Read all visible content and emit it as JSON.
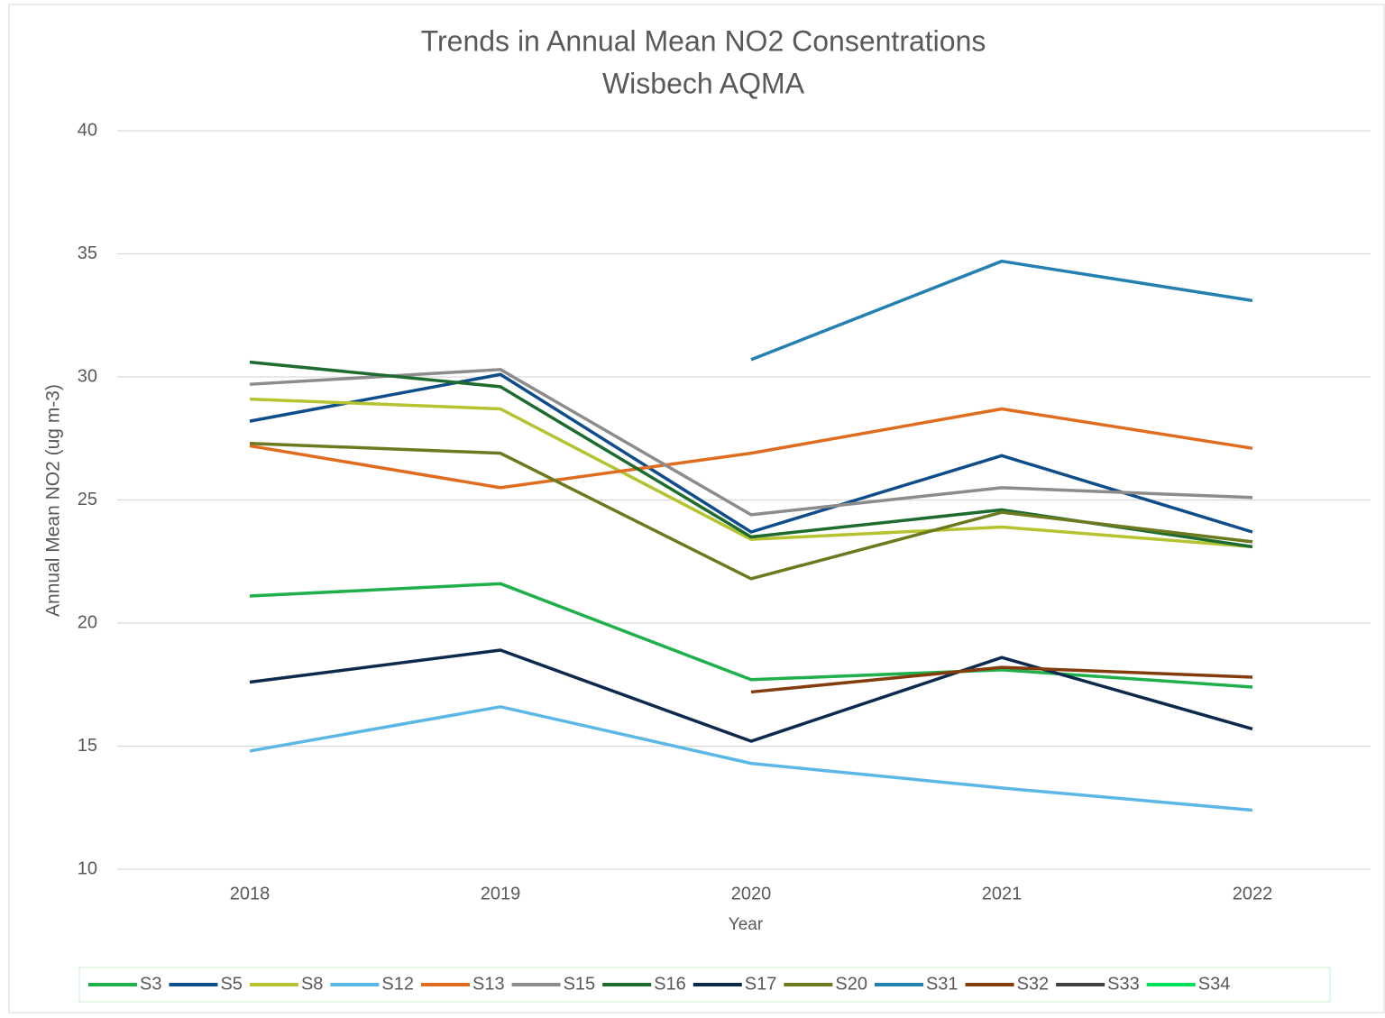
{
  "chart_data": {
    "type": "line",
    "title": "Trends in Annual Mean NO2 Consentrations",
    "subtitle": "Wisbech AQMA",
    "x_label": "Year",
    "y_label": "Annual Mean NO2 (ug m-3)",
    "categories": [
      "2018",
      "2019",
      "2020",
      "2021",
      "2022"
    ],
    "ylim": [
      10,
      40
    ],
    "yticks": [
      10,
      15,
      20,
      25,
      30,
      35,
      40
    ],
    "grid": true,
    "legend": "bottom",
    "series": [
      {
        "name": "S3",
        "color": "#1fb04c",
        "values": [
          21.1,
          21.6,
          17.7,
          18.1,
          17.4
        ]
      },
      {
        "name": "S5",
        "color": "#0f4c8a",
        "values": [
          28.2,
          30.1,
          23.7,
          26.8,
          23.7
        ]
      },
      {
        "name": "S8",
        "color": "#b5c330",
        "values": [
          29.1,
          28.7,
          23.4,
          23.9,
          23.1
        ]
      },
      {
        "name": "S12",
        "color": "#5bb7e5",
        "values": [
          14.8,
          16.6,
          14.3,
          13.3,
          12.4
        ]
      },
      {
        "name": "S13",
        "color": "#e06c1f",
        "values": [
          27.2,
          25.5,
          26.9,
          28.7,
          27.1
        ]
      },
      {
        "name": "S15",
        "color": "#8c8c8c",
        "values": [
          29.7,
          30.3,
          24.4,
          25.5,
          25.1
        ]
      },
      {
        "name": "S16",
        "color": "#1e6b2f",
        "values": [
          30.6,
          29.6,
          23.5,
          24.6,
          23.1
        ]
      },
      {
        "name": "S17",
        "color": "#0d2a4d",
        "values": [
          17.6,
          18.9,
          15.2,
          18.6,
          15.7
        ]
      },
      {
        "name": "S20",
        "color": "#6b7a1f",
        "values": [
          27.3,
          26.9,
          21.8,
          24.5,
          23.3
        ]
      },
      {
        "name": "S31",
        "color": "#2380b0",
        "values": [
          null,
          null,
          30.7,
          34.7,
          33.1
        ]
      },
      {
        "name": "S32",
        "color": "#843c0c",
        "values": [
          null,
          null,
          17.2,
          18.2,
          17.8
        ]
      },
      {
        "name": "S33",
        "color": "#404040",
        "values": [
          null,
          null,
          null,
          null,
          null
        ]
      },
      {
        "name": "S34",
        "color": "#00e05a",
        "values": [
          null,
          null,
          null,
          null,
          null
        ]
      }
    ]
  }
}
